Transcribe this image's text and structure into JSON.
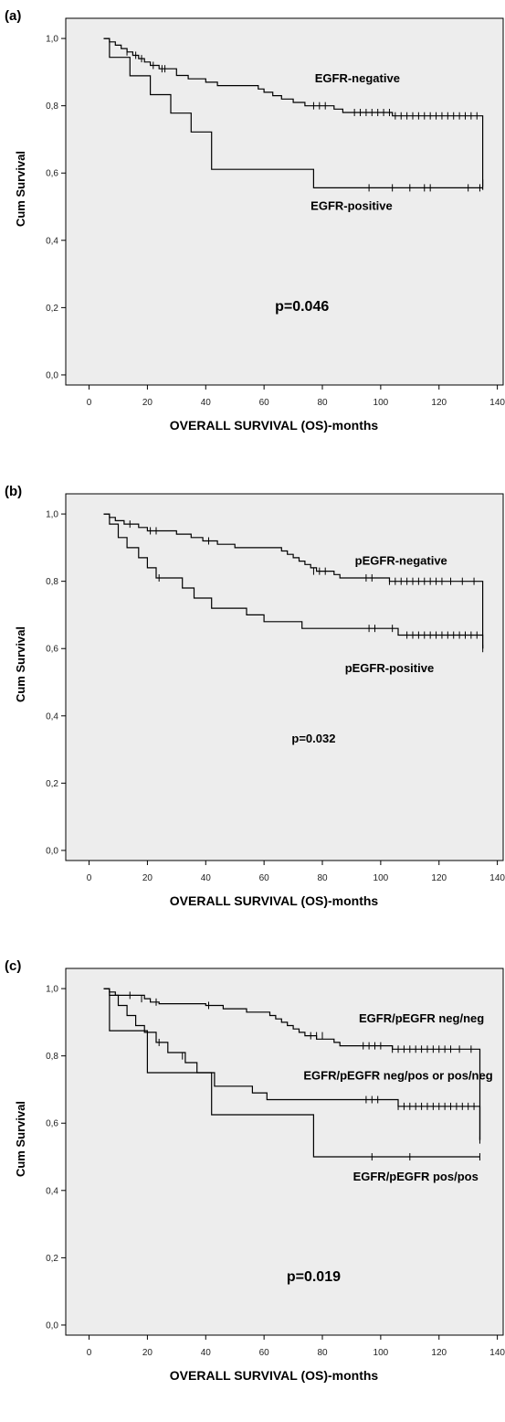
{
  "chart_data": [
    {
      "type": "line",
      "panel_label": "(a)",
      "xlabel": "OVERALL SURVIVAL (OS)-months",
      "ylabel": "Cum Survival",
      "xlim": [
        -8,
        142
      ],
      "ylim": [
        -0.03,
        1.06
      ],
      "x_ticks": [
        "0",
        "20",
        "40",
        "60",
        "80",
        "100",
        "120",
        "140"
      ],
      "y_ticks": [
        "0,0",
        "0,2",
        "0,4",
        "0,6",
        "0,8",
        "1,0"
      ],
      "series": [
        {
          "name": "EGFR-negative",
          "steps": [
            [
              5,
              1.0
            ],
            [
              7,
              0.99
            ],
            [
              9,
              0.98
            ],
            [
              11,
              0.97
            ],
            [
              13,
              0.96
            ],
            [
              15,
              0.95
            ],
            [
              17,
              0.94
            ],
            [
              19,
              0.93
            ],
            [
              21,
              0.92
            ],
            [
              24,
              0.91
            ],
            [
              30,
              0.89
            ],
            [
              34,
              0.88
            ],
            [
              40,
              0.87
            ],
            [
              44,
              0.86
            ],
            [
              58,
              0.85
            ],
            [
              60,
              0.84
            ],
            [
              63,
              0.83
            ],
            [
              66,
              0.82
            ],
            [
              70,
              0.81
            ],
            [
              74,
              0.8
            ],
            [
              84,
              0.79
            ],
            [
              87,
              0.78
            ],
            [
              104,
              0.77
            ],
            [
              135,
              0.55
            ]
          ],
          "censored": [
            [
              13,
              0.96
            ],
            [
              16,
              0.95
            ],
            [
              18,
              0.94
            ],
            [
              22,
              0.92
            ],
            [
              25,
              0.91
            ],
            [
              26,
              0.91
            ],
            [
              77,
              0.8
            ],
            [
              79,
              0.8
            ],
            [
              81,
              0.8
            ],
            [
              91,
              0.78
            ],
            [
              93,
              0.78
            ],
            [
              95,
              0.78
            ],
            [
              97,
              0.78
            ],
            [
              99,
              0.78
            ],
            [
              101,
              0.78
            ],
            [
              103,
              0.78
            ],
            [
              105,
              0.77
            ],
            [
              107,
              0.77
            ],
            [
              109,
              0.77
            ],
            [
              111,
              0.77
            ],
            [
              113,
              0.77
            ],
            [
              115,
              0.77
            ],
            [
              117,
              0.77
            ],
            [
              119,
              0.77
            ],
            [
              121,
              0.77
            ],
            [
              123,
              0.77
            ],
            [
              125,
              0.77
            ],
            [
              127,
              0.77
            ],
            [
              129,
              0.77
            ],
            [
              131,
              0.77
            ],
            [
              133,
              0.77
            ],
            [
              135,
              0.57
            ]
          ]
        },
        {
          "name": "EGFR-positive",
          "steps": [
            [
              5,
              1.0
            ],
            [
              7,
              0.944
            ],
            [
              14,
              0.889
            ],
            [
              21,
              0.833
            ],
            [
              28,
              0.778
            ],
            [
              35,
              0.722
            ],
            [
              42,
              0.611
            ],
            [
              77,
              0.556
            ],
            [
              135,
              0.556
            ]
          ],
          "censored": [
            [
              96,
              0.556
            ],
            [
              104,
              0.556
            ],
            [
              110,
              0.556
            ],
            [
              115,
              0.556
            ],
            [
              117,
              0.556
            ],
            [
              130,
              0.556
            ],
            [
              134,
              0.556
            ]
          ]
        }
      ],
      "annotations": [
        {
          "text": "EGFR-negative",
          "x": 92,
          "y": 0.87
        },
        {
          "text": "EGFR-positive",
          "x": 90,
          "y": 0.49
        },
        {
          "text": "p=0.046",
          "x": 73,
          "y": 0.19
        }
      ]
    },
    {
      "type": "line",
      "panel_label": "(b)",
      "xlabel": "OVERALL SURVIVAL (OS)-months",
      "ylabel": "Cum Survival",
      "xlim": [
        -8,
        142
      ],
      "ylim": [
        -0.03,
        1.06
      ],
      "x_ticks": [
        "0",
        "20",
        "40",
        "60",
        "80",
        "100",
        "120",
        "140"
      ],
      "y_ticks": [
        "0,0",
        "0,2",
        "0,4",
        "0,6",
        "0,8",
        "1,0"
      ],
      "series": [
        {
          "name": "pEGFR-negative",
          "steps": [
            [
              5,
              1.0
            ],
            [
              7,
              0.99
            ],
            [
              9,
              0.98
            ],
            [
              12,
              0.97
            ],
            [
              17,
              0.96
            ],
            [
              20,
              0.95
            ],
            [
              30,
              0.94
            ],
            [
              35,
              0.93
            ],
            [
              39,
              0.92
            ],
            [
              44,
              0.91
            ],
            [
              50,
              0.9
            ],
            [
              66,
              0.89
            ],
            [
              68,
              0.88
            ],
            [
              70,
              0.87
            ],
            [
              72,
              0.86
            ],
            [
              74,
              0.85
            ],
            [
              76,
              0.84
            ],
            [
              78,
              0.83
            ],
            [
              84,
              0.82
            ],
            [
              86,
              0.81
            ],
            [
              103,
              0.8
            ],
            [
              135,
              0.6
            ]
          ],
          "censored": [
            [
              14,
              0.97
            ],
            [
              21,
              0.95
            ],
            [
              23,
              0.95
            ],
            [
              41,
              0.92
            ],
            [
              77,
              0.83
            ],
            [
              79,
              0.83
            ],
            [
              81,
              0.83
            ],
            [
              95,
              0.81
            ],
            [
              97,
              0.81
            ],
            [
              103,
              0.8
            ],
            [
              105,
              0.8
            ],
            [
              107,
              0.8
            ],
            [
              109,
              0.8
            ],
            [
              111,
              0.8
            ],
            [
              113,
              0.8
            ],
            [
              115,
              0.8
            ],
            [
              117,
              0.8
            ],
            [
              119,
              0.8
            ],
            [
              121,
              0.8
            ],
            [
              124,
              0.8
            ],
            [
              128,
              0.8
            ],
            [
              132,
              0.8
            ],
            [
              135,
              0.6
            ]
          ]
        },
        {
          "name": "pEGFR-positive",
          "steps": [
            [
              5,
              1.0
            ],
            [
              7,
              0.97
            ],
            [
              10,
              0.93
            ],
            [
              13,
              0.9
            ],
            [
              17,
              0.87
            ],
            [
              20,
              0.84
            ],
            [
              23,
              0.81
            ],
            [
              32,
              0.78
            ],
            [
              36,
              0.75
            ],
            [
              42,
              0.72
            ],
            [
              54,
              0.7
            ],
            [
              60,
              0.68
            ],
            [
              73,
              0.66
            ],
            [
              106,
              0.64
            ],
            [
              135,
              0.6
            ]
          ],
          "censored": [
            [
              24,
              0.81
            ],
            [
              96,
              0.66
            ],
            [
              98,
              0.66
            ],
            [
              104,
              0.66
            ],
            [
              109,
              0.64
            ],
            [
              111,
              0.64
            ],
            [
              113,
              0.64
            ],
            [
              115,
              0.64
            ],
            [
              117,
              0.64
            ],
            [
              119,
              0.64
            ],
            [
              121,
              0.64
            ],
            [
              123,
              0.64
            ],
            [
              125,
              0.64
            ],
            [
              127,
              0.64
            ],
            [
              129,
              0.64
            ],
            [
              131,
              0.64
            ],
            [
              133,
              0.64
            ]
          ]
        }
      ],
      "annotations": [
        {
          "text": "pEGFR-negative",
          "x": 107,
          "y": 0.85
        },
        {
          "text": "pEGFR-positive",
          "x": 103,
          "y": 0.53
        },
        {
          "text": "p=0.032",
          "x": 77,
          "y": 0.32
        }
      ]
    },
    {
      "type": "line",
      "panel_label": "(c)",
      "xlabel": "OVERALL SURVIVAL (OS)-months",
      "ylabel": "Cum Survival",
      "xlim": [
        -8,
        142
      ],
      "ylim": [
        -0.03,
        1.06
      ],
      "x_ticks": [
        "0",
        "20",
        "40",
        "60",
        "80",
        "100",
        "120",
        "140"
      ],
      "y_ticks": [
        "0,0",
        "0,2",
        "0,4",
        "0,6",
        "0,8",
        "1,0"
      ],
      "series": [
        {
          "name": "EGFR/pEGFR neg/neg",
          "steps": [
            [
              5,
              1.0
            ],
            [
              7,
              0.99
            ],
            [
              9,
              0.98
            ],
            [
              19,
              0.97
            ],
            [
              21,
              0.96
            ],
            [
              24,
              0.955
            ],
            [
              40,
              0.95
            ],
            [
              46,
              0.94
            ],
            [
              54,
              0.93
            ],
            [
              62,
              0.92
            ],
            [
              64,
              0.91
            ],
            [
              66,
              0.9
            ],
            [
              68,
              0.89
            ],
            [
              70,
              0.88
            ],
            [
              72,
              0.87
            ],
            [
              74,
              0.86
            ],
            [
              78,
              0.85
            ],
            [
              84,
              0.84
            ],
            [
              86,
              0.83
            ],
            [
              104,
              0.82
            ],
            [
              134,
              0.55
            ]
          ],
          "censored": [
            [
              14,
              0.98
            ],
            [
              18,
              0.97
            ],
            [
              23,
              0.96
            ],
            [
              41,
              0.95
            ],
            [
              76,
              0.86
            ],
            [
              78,
              0.86
            ],
            [
              80,
              0.86
            ],
            [
              94,
              0.83
            ],
            [
              96,
              0.83
            ],
            [
              98,
              0.83
            ],
            [
              100,
              0.83
            ],
            [
              104,
              0.82
            ],
            [
              106,
              0.82
            ],
            [
              108,
              0.82
            ],
            [
              110,
              0.82
            ],
            [
              112,
              0.82
            ],
            [
              114,
              0.82
            ],
            [
              116,
              0.82
            ],
            [
              118,
              0.82
            ],
            [
              120,
              0.82
            ],
            [
              122,
              0.82
            ],
            [
              124,
              0.82
            ],
            [
              127,
              0.82
            ],
            [
              131,
              0.82
            ],
            [
              134,
              0.55
            ]
          ]
        },
        {
          "name": "EGFR/pEGFR neg/pos or pos/neg",
          "steps": [
            [
              5,
              1.0
            ],
            [
              7,
              0.98
            ],
            [
              10,
              0.95
            ],
            [
              13,
              0.92
            ],
            [
              16,
              0.89
            ],
            [
              19,
              0.87
            ],
            [
              23,
              0.84
            ],
            [
              27,
              0.81
            ],
            [
              33,
              0.78
            ],
            [
              37,
              0.75
            ],
            [
              43,
              0.71
            ],
            [
              56,
              0.69
            ],
            [
              61,
              0.67
            ],
            [
              106,
              0.65
            ],
            [
              134,
              0.55
            ]
          ],
          "censored": [
            [
              24,
              0.84
            ],
            [
              32,
              0.8
            ],
            [
              95,
              0.67
            ],
            [
              97,
              0.67
            ],
            [
              99,
              0.67
            ],
            [
              106,
              0.65
            ],
            [
              108,
              0.65
            ],
            [
              110,
              0.65
            ],
            [
              112,
              0.65
            ],
            [
              114,
              0.65
            ],
            [
              116,
              0.65
            ],
            [
              118,
              0.65
            ],
            [
              120,
              0.65
            ],
            [
              122,
              0.65
            ],
            [
              124,
              0.65
            ],
            [
              126,
              0.65
            ],
            [
              128,
              0.65
            ],
            [
              130,
              0.65
            ],
            [
              132,
              0.65
            ]
          ]
        },
        {
          "name": "EGFR/pEGFR pos/pos",
          "steps": [
            [
              5,
              1.0
            ],
            [
              7,
              0.875
            ],
            [
              20,
              0.75
            ],
            [
              42,
              0.625
            ],
            [
              77,
              0.5
            ],
            [
              134,
              0.5
            ]
          ],
          "censored": [
            [
              97,
              0.5
            ],
            [
              110,
              0.5
            ],
            [
              134,
              0.5
            ]
          ]
        }
      ],
      "annotations": [
        {
          "text": "EGFR/pEGFR neg/neg",
          "x": 114,
          "y": 0.9
        },
        {
          "text": "EGFR/pEGFR neg/pos or pos/neg",
          "x": 106,
          "y": 0.73
        },
        {
          "text": "EGFR/pEGFR pos/pos",
          "x": 112,
          "y": 0.43
        },
        {
          "text": "p=0.019",
          "x": 77,
          "y": 0.13
        }
      ]
    }
  ]
}
